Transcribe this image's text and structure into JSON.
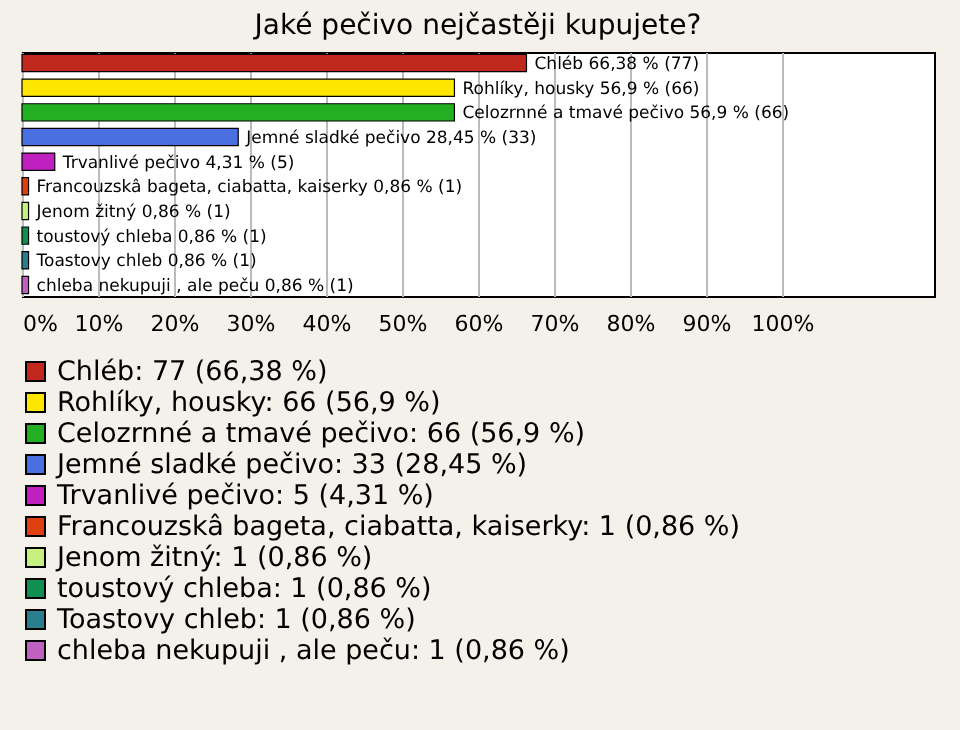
{
  "chart_data": {
    "type": "bar",
    "orientation": "horizontal",
    "title": "Jaké pečivo nejčastěji kupujete?",
    "categories": [
      null,
      null,
      null,
      null,
      null,
      null,
      null,
      null,
      null,
      null
    ],
    "series": [
      {
        "name": "Chléb: 77 (66,38 %)",
        "color": "#c0281e",
        "values": [
          66.38,
          null,
          null,
          null,
          null,
          null,
          null,
          null,
          null,
          null
        ],
        "value_labels": [
          "Chléb 66,38 % (77)",
          null,
          null,
          null,
          null,
          null,
          null,
          null,
          null,
          null
        ]
      },
      {
        "name": "Rohlíky, housky: 66 (56,9 %)",
        "color": "#ffe600",
        "values": [
          null,
          56.9,
          null,
          null,
          null,
          null,
          null,
          null,
          null,
          null
        ],
        "value_labels": [
          null,
          "Rohlíky, housky 56,9 % (66)",
          null,
          null,
          null,
          null,
          null,
          null,
          null,
          null
        ]
      },
      {
        "name": "Celozrnné a tmavé pečivo: 66 (56,9 %)",
        "color": "#22b022",
        "values": [
          null,
          null,
          56.9,
          null,
          null,
          null,
          null,
          null,
          null,
          null
        ],
        "value_labels": [
          null,
          null,
          "Celozrnné a tmavé pečivo 56,9 % (66)",
          null,
          null,
          null,
          null,
          null,
          null,
          null
        ]
      },
      {
        "name": "Jemné sladké pečivo: 33 (28,45 %)",
        "color": "#4a6fe0",
        "values": [
          null,
          null,
          null,
          28.45,
          null,
          null,
          null,
          null,
          null,
          null
        ],
        "value_labels": [
          null,
          null,
          null,
          "Jemné sladké pečivo 28,45 % (33)",
          null,
          null,
          null,
          null,
          null,
          null
        ]
      },
      {
        "name": "Trvanlivé pečivo: 5 (4,31 %)",
        "color": "#c020c0",
        "values": [
          null,
          null,
          null,
          null,
          4.31,
          null,
          null,
          null,
          null,
          null
        ],
        "value_labels": [
          null,
          null,
          null,
          null,
          "Trvanlivé pečivo 4,31 % (5)",
          null,
          null,
          null,
          null,
          null
        ]
      },
      {
        "name": "Francouzskâ bageta, ciabatta, kaiserky: 1 (0,86 %)",
        "color": "#e04010",
        "values": [
          null,
          null,
          null,
          null,
          null,
          0.86,
          null,
          null,
          null,
          null
        ],
        "value_labels": [
          null,
          null,
          null,
          null,
          null,
          "Francouzskâ bageta, ciabatta, kaiserky 0,86 % (1)",
          null,
          null,
          null,
          null
        ]
      },
      {
        "name": "Jenom žitný: 1 (0,86 %)",
        "color": "#c8f080",
        "values": [
          null,
          null,
          null,
          null,
          null,
          null,
          0.86,
          null,
          null,
          null
        ],
        "value_labels": [
          null,
          null,
          null,
          null,
          null,
          null,
          "Jenom žitný 0,86 % (1)",
          null,
          null,
          null
        ]
      },
      {
        "name": "toustový chleba: 1 (0,86 %)",
        "color": "#109050",
        "values": [
          null,
          null,
          null,
          null,
          null,
          null,
          null,
          0.86,
          null,
          null
        ],
        "value_labels": [
          null,
          null,
          null,
          null,
          null,
          null,
          null,
          "toustový chleba 0,86 % (1)",
          null,
          null
        ]
      },
      {
        "name": "Toastovy chleb: 1 (0,86 %)",
        "color": "#2a7f8f",
        "values": [
          null,
          null,
          null,
          null,
          null,
          null,
          null,
          null,
          0.86,
          null
        ],
        "value_labels": [
          null,
          null,
          null,
          null,
          null,
          null,
          null,
          null,
          "Toastovy chleb 0,86 % (1)",
          null
        ]
      },
      {
        "name": "chleba nekupuji , ale peču: 1 (0,86 %)",
        "color": "#c060c0",
        "values": [
          null,
          null,
          null,
          null,
          null,
          null,
          null,
          null,
          null,
          0.86
        ],
        "value_labels": [
          null,
          null,
          null,
          null,
          null,
          null,
          null,
          null,
          null,
          "chleba nekupuji , ale peču 0,86 % (1)"
        ]
      }
    ],
    "xlim": [
      0,
      120
    ],
    "xticks": [
      {
        "value": 0,
        "label": "0%"
      },
      {
        "value": 10,
        "label": "10%"
      },
      {
        "value": 20,
        "label": "20%"
      },
      {
        "value": 30,
        "label": "30%"
      },
      {
        "value": 40,
        "label": "40%"
      },
      {
        "value": 50,
        "label": "50%"
      },
      {
        "value": 60,
        "label": "60%"
      },
      {
        "value": 70,
        "label": "70%"
      },
      {
        "value": 80,
        "label": "80%"
      },
      {
        "value": 90,
        "label": "90%"
      },
      {
        "value": 100,
        "label": "100%"
      }
    ],
    "grid": true,
    "legend": "bottom",
    "tick_labels": "x"
  }
}
